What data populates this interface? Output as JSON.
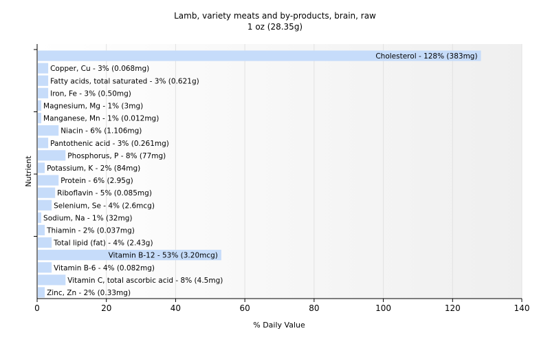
{
  "chart_data": {
    "type": "bar",
    "orientation": "horizontal",
    "title": "Lamb, variety meats and by-products, brain, raw",
    "subtitle": "1 oz (28.35g)",
    "xlabel": "% Daily Value",
    "ylabel": "Nutrient",
    "xlim": [
      0,
      140
    ],
    "xticks": [
      0,
      20,
      40,
      60,
      80,
      100,
      120,
      140
    ],
    "grid": true,
    "bar_color": "#c6dcfa",
    "categories": [
      "Cholesterol",
      "Copper, Cu",
      "Fatty acids, total saturated",
      "Iron, Fe",
      "Magnesium, Mg",
      "Manganese, Mn",
      "Niacin",
      "Pantothenic acid",
      "Phosphorus, P",
      "Potassium, K",
      "Protein",
      "Riboflavin",
      "Selenium, Se",
      "Sodium, Na",
      "Thiamin",
      "Total lipid (fat)",
      "Vitamin B-12",
      "Vitamin B-6",
      "Vitamin C, total ascorbic acid",
      "Zinc, Zn"
    ],
    "values": [
      128,
      3,
      3,
      3,
      1,
      1,
      6,
      3,
      8,
      2,
      6,
      5,
      4,
      1,
      2,
      4,
      53,
      4,
      8,
      2
    ],
    "labels": [
      "Cholesterol - 128% (383mg)",
      "Copper, Cu - 3% (0.068mg)",
      "Fatty acids, total saturated - 3% (0.621g)",
      "Iron, Fe - 3% (0.50mg)",
      "Magnesium, Mg - 1% (3mg)",
      "Manganese, Mn - 1% (0.012mg)",
      "Niacin - 6% (1.106mg)",
      "Pantothenic acid - 3% (0.261mg)",
      "Phosphorus, P - 8% (77mg)",
      "Potassium, K - 2% (84mg)",
      "Protein - 6% (2.95g)",
      "Riboflavin - 5% (0.085mg)",
      "Selenium, Se - 4% (2.6mcg)",
      "Sodium, Na - 1% (32mg)",
      "Thiamin - 2% (0.037mg)",
      "Total lipid (fat) - 4% (2.43g)",
      "Vitamin B-12 - 53% (3.20mcg)",
      "Vitamin B-6 - 4% (0.082mg)",
      "Vitamin C, total ascorbic acid - 8% (4.5mg)",
      "Zinc, Zn - 2% (0.33mg)"
    ]
  }
}
